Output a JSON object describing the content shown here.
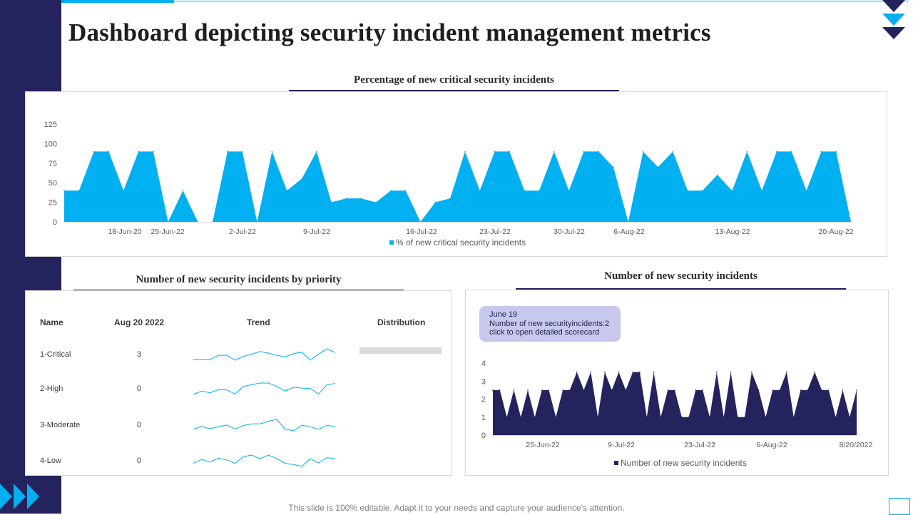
{
  "page": {
    "title": "Dashboard depicting security incident management metrics",
    "footer": "This slide is 100% editable. Adapt it to your needs and capture your audience’s attention."
  },
  "colors": {
    "sidebar": "#25235e",
    "accent": "#00b0f0",
    "series_dark": "#25235e",
    "tooltip_bg": "#c7c8ec"
  },
  "decorations": {
    "nav_arrows_top": "chevron-down-icon",
    "nav_arrows_bottom": "triangle-right-icon"
  },
  "panels": {
    "critical_pct_title": "Percentage of new critical  security incidents",
    "priority_title": "Number  of new security incidents by priority",
    "incidents_title": "Number  of new security incidents"
  },
  "priority_table": {
    "headers": {
      "name": "Name",
      "value": "Aug  20 2022",
      "trend": "Trend",
      "distribution": "Distribution"
    },
    "rows": [
      {
        "name": "1-Critical",
        "value": "3",
        "distribution": 1.0,
        "trend": [
          2,
          2.1,
          2,
          2.8,
          2.8,
          1.9,
          2.6,
          3,
          3.5,
          3.2,
          2.8,
          2.5,
          3.1,
          3.4,
          1.9,
          3,
          4,
          3.3
        ]
      },
      {
        "name": "2-High",
        "value": "0",
        "distribution": 0,
        "trend": [
          1.5,
          2.3,
          1.9,
          2.6,
          2.6,
          1.6,
          3.4,
          3.8,
          4.2,
          4.2,
          3.4,
          2.3,
          3.2,
          3,
          2.9,
          1.6,
          3.8,
          4.1
        ]
      },
      {
        "name": "3-Moderate",
        "value": "0",
        "distribution": 0,
        "trend": [
          2,
          3,
          2.2,
          2.9,
          3.5,
          2.1,
          3.3,
          3.9,
          3.9,
          4.8,
          5.4,
          2.1,
          1.5,
          3.4,
          2.9,
          2,
          3.3,
          3
        ]
      },
      {
        "name": "4-Low",
        "value": "0",
        "distribution": 0,
        "trend": [
          2,
          3.2,
          2.4,
          3.6,
          3.1,
          2,
          4.1,
          4.6,
          3.5,
          4.6,
          3.5,
          2,
          1.6,
          1,
          3.5,
          2.1,
          3.8,
          3.4
        ]
      }
    ]
  },
  "tooltip": {
    "line1": "June 19",
    "line2": "Number of new securityincidents:2",
    "line3": "click to open detailed scorecard"
  },
  "chart_data": [
    {
      "type": "area",
      "title": "Percentage of new critical  security incidents",
      "ylim": [
        0,
        125
      ],
      "yticks": [
        "0",
        "25",
        "50",
        "75",
        "100",
        "125"
      ],
      "xticks": [
        "18-Jun-20",
        "25-Jun-22",
        "2-Jul-22",
        "9-Jul-22",
        "16-Jul-22",
        "23-Jul-22",
        "30-Jul-22",
        "6-Aug-22",
        "13-Aug-22",
        "20-Aug-22"
      ],
      "legend": "bottom",
      "grid": false,
      "series": [
        {
          "name": "% of new critical security incidents",
          "color": "#00b0f0",
          "values": [
            40,
            40,
            90,
            90,
            40,
            90,
            90,
            0,
            40,
            0,
            0,
            90,
            90,
            0,
            90,
            40,
            55,
            90,
            25,
            30,
            30,
            25,
            40,
            40,
            0,
            25,
            30,
            90,
            40,
            90,
            90,
            40,
            40,
            90,
            40,
            90,
            90,
            70,
            0,
            90,
            70,
            90,
            40,
            40,
            60,
            40,
            90,
            40,
            90,
            90,
            40,
            90,
            90,
            0
          ]
        }
      ]
    },
    {
      "type": "area",
      "title": "Number  of new security incidents",
      "ylim": [
        0,
        4
      ],
      "yticks": [
        "0",
        "1",
        "2",
        "3",
        "4"
      ],
      "xticks": [
        "25-Jun-22",
        "9-Jul-22",
        "23-Jul-22",
        "6-Aug-22",
        "8/20/2022"
      ],
      "legend": "bottom",
      "grid": false,
      "series": [
        {
          "name": "Number of new security incidents",
          "color": "#25235e",
          "values": [
            2.5,
            2.5,
            1,
            2.5,
            1,
            2.5,
            1,
            2.5,
            2.5,
            1,
            2.5,
            2.5,
            3.5,
            2.5,
            3.5,
            1,
            3.5,
            2.5,
            3.5,
            2.5,
            3.5,
            3.5,
            1,
            3.5,
            1,
            2.5,
            2.5,
            1,
            1,
            2.5,
            2.5,
            1,
            3.5,
            1,
            3.5,
            1,
            1,
            3.5,
            2.5,
            1,
            2.5,
            2.5,
            3.5,
            1,
            2.5,
            2.5,
            3.5,
            2.5,
            2.5,
            1,
            2.5,
            1,
            2.5
          ]
        }
      ]
    }
  ]
}
